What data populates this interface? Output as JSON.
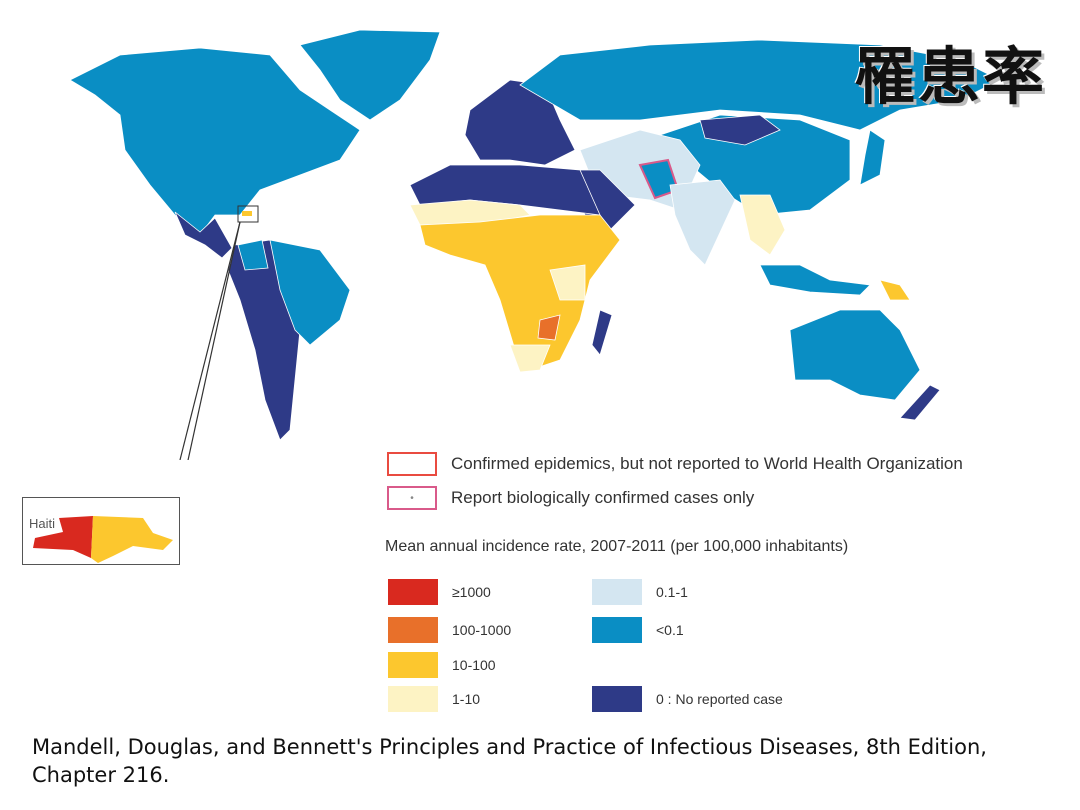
{
  "title": "罹患率",
  "colors": {
    "ge1000": "#d9291f",
    "r100_1000": "#e8702a",
    "r10_100": "#fcc72e",
    "r1_10": "#fdf3c4",
    "r01_1": "#d4e6f1",
    "lt01": "#0a8ec4",
    "zero": "#2e3a87",
    "epidemic_outline": "#e94b40",
    "bio_outline": "#d95a8a"
  },
  "legend": {
    "epidemic_label": "Confirmed epidemics, but not reported to World Health Organization",
    "bio_label": "Report biologically confirmed cases only",
    "bio_marker": "•",
    "scale_title": "Mean annual incidence rate, 2007-2011 (per 100,000 inhabitants)",
    "classes": [
      {
        "label": "≥1000",
        "color_key": "ge1000"
      },
      {
        "label": "100-1000",
        "color_key": "r100_1000"
      },
      {
        "label": "10-100",
        "color_key": "r10_100"
      },
      {
        "label": "1-10",
        "color_key": "r1_10"
      },
      {
        "label": "0.1-1",
        "color_key": "r01_1"
      },
      {
        "label": "<0.1",
        "color_key": "lt01"
      },
      {
        "label": "0 : No reported case",
        "color_key": "zero"
      }
    ]
  },
  "inset": {
    "label": "Haiti"
  },
  "citation": "Mandell, Douglas, and Bennett's Principles and Practice of Infectious Diseases, 8th Edition, Chapter 216."
}
